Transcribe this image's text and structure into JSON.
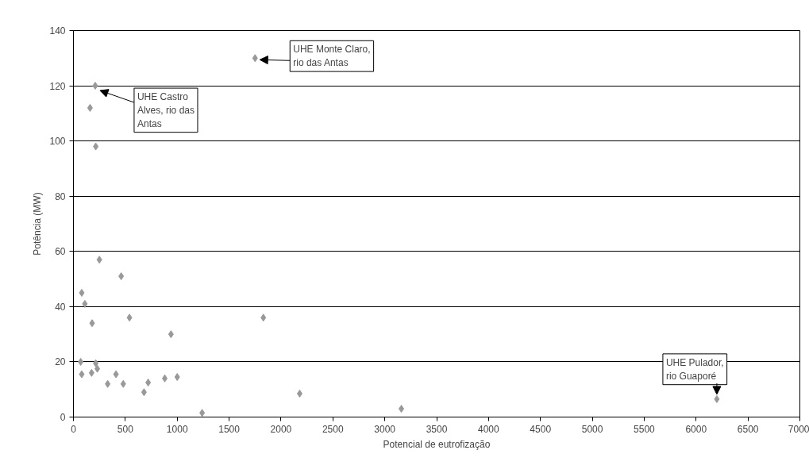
{
  "chart_data": {
    "type": "scatter",
    "xlabel": "Potencial de eutrofização",
    "ylabel": "Potência (MW)",
    "x": [
      1750,
      210,
      160,
      215,
      250,
      460,
      80,
      110,
      180,
      540,
      940,
      1830,
      70,
      80,
      175,
      215,
      230,
      330,
      410,
      480,
      680,
      720,
      880,
      1000,
      1240,
      2180,
      3160,
      6200
    ],
    "series": [
      {
        "color": "#999999",
        "values": [
          130,
          120,
          112,
          98,
          57,
          51,
          45,
          41,
          34,
          36,
          30,
          36,
          20,
          15.5,
          16,
          19.5,
          17.5,
          12,
          15.5,
          12,
          9,
          12.5,
          14,
          14.5,
          1.5,
          8.5,
          3,
          6.5
        ]
      }
    ],
    "marker": "diamond",
    "grid": "y",
    "xlim": [
      0,
      7000
    ],
    "xticks": [
      0,
      500,
      1000,
      1500,
      2000,
      2500,
      3000,
      3500,
      4000,
      4500,
      5000,
      5500,
      6000,
      6500,
      7000
    ],
    "ylim": [
      0,
      140
    ],
    "yticks": [
      0,
      20,
      40,
      60,
      80,
      100,
      120,
      140
    ],
    "annotations": [
      {
        "text": "UHE Monte Claro,\nrio das Antas",
        "x": 1750,
        "y": 130
      },
      {
        "text": "UHE Castro\nAlves, rio das\nAntas",
        "x": 210,
        "y": 120
      },
      {
        "text": "UHE Pulador,\nrio Guaporé",
        "x": 6200,
        "y": 6.5
      }
    ]
  }
}
